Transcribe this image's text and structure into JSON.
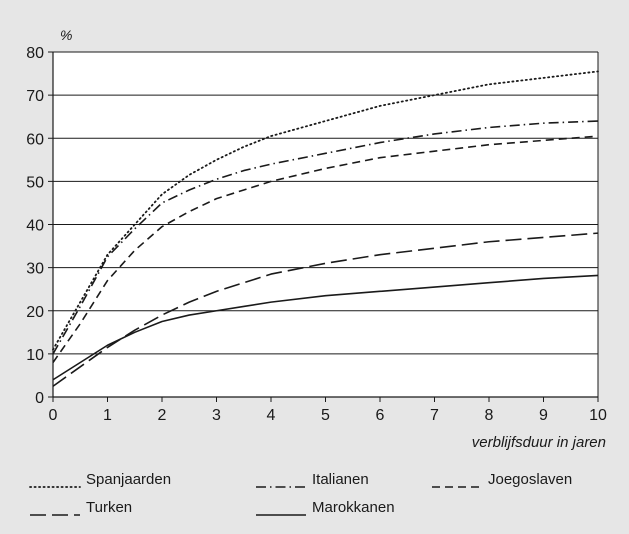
{
  "chart_data": {
    "type": "line",
    "ylabel": "%",
    "xlabel": "verblijfsduur in jaren",
    "xlim": [
      0,
      10
    ],
    "ylim": [
      0,
      80
    ],
    "x_ticks": [
      0,
      1,
      2,
      3,
      4,
      5,
      6,
      7,
      8,
      9,
      10
    ],
    "y_ticks": [
      0,
      10,
      20,
      30,
      40,
      50,
      60,
      70,
      80
    ],
    "grid": "horizontal",
    "legend_position": "bottom",
    "x": [
      0,
      0.5,
      1,
      1.5,
      2,
      2.5,
      3,
      3.5,
      4,
      5,
      6,
      7,
      8,
      9,
      10
    ],
    "series": [
      {
        "name": "Spanjaarden",
        "style": "dotted",
        "values": [
          11,
          22,
          33,
          40,
          47,
          51.5,
          55,
          58,
          60.5,
          64,
          67.5,
          70,
          72.5,
          74,
          75.5
        ]
      },
      {
        "name": "Italianen",
        "style": "dashdot",
        "values": [
          10,
          21,
          32.5,
          39,
          45,
          48,
          50.5,
          52.5,
          54,
          56.5,
          59,
          61,
          62.5,
          63.5,
          64
        ]
      },
      {
        "name": "Joegoslaven",
        "style": "dashed",
        "values": [
          8,
          17,
          27,
          34,
          39.5,
          43,
          46,
          48,
          50,
          53,
          55.5,
          57,
          58.5,
          59.5,
          60.5
        ]
      },
      {
        "name": "Turken",
        "style": "longdash",
        "values": [
          2.5,
          7,
          11.5,
          15.5,
          19,
          22,
          24.5,
          26.5,
          28.5,
          31,
          33,
          34.5,
          36,
          37,
          38
        ]
      },
      {
        "name": "Marokkanen",
        "style": "solid",
        "values": [
          4,
          8,
          12,
          15,
          17.5,
          19,
          20,
          21,
          22,
          23.5,
          24.5,
          25.5,
          26.5,
          27.5,
          28.2
        ]
      }
    ],
    "colors": {
      "line": "#1a1a1a",
      "grid": "#1a1a1a",
      "background": "#e6e6e6",
      "plot_background": "#ffffff"
    }
  }
}
